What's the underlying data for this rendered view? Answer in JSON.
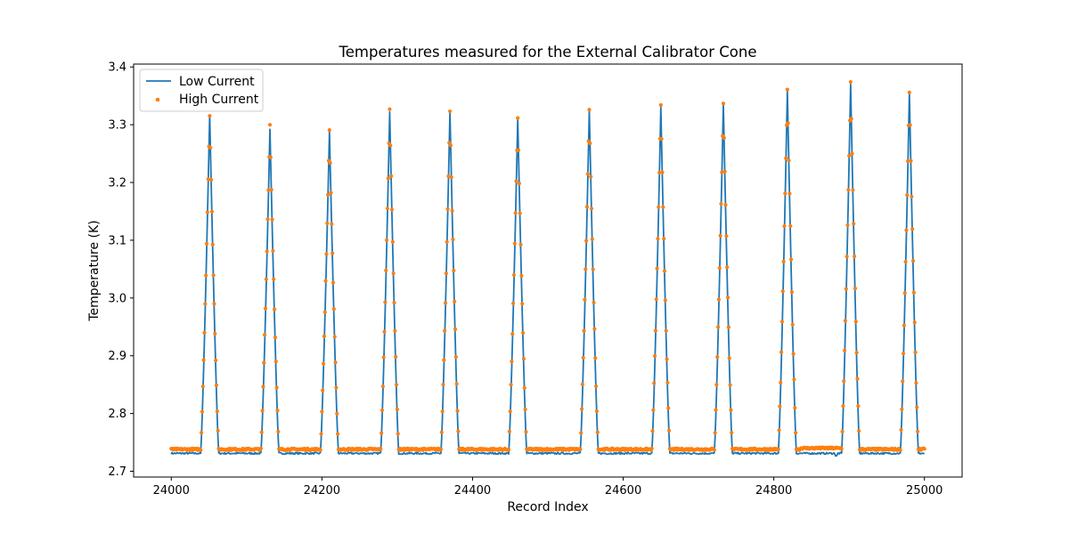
{
  "chart_data": {
    "type": "line",
    "title": "Temperatures measured for the External Calibrator Cone",
    "xlabel": "Record Index",
    "ylabel": "Temperature (K)",
    "xlim": [
      23950,
      25050
    ],
    "ylim": [
      2.69,
      3.405
    ],
    "xticks": [
      24000,
      24200,
      24400,
      24600,
      24800,
      25000
    ],
    "yticks": [
      2.7,
      2.8,
      2.9,
      3.0,
      3.1,
      3.2,
      3.3,
      3.4
    ],
    "x_range": [
      24000,
      25000
    ],
    "legend": {
      "placement": "upper left",
      "entries": [
        "Low Current",
        "High Current"
      ]
    },
    "colors": {
      "low": "#1f77b4",
      "high": "#ff7f0e"
    },
    "baseline": {
      "low": 2.731,
      "high": 2.738
    },
    "peaks": [
      {
        "center": 24051,
        "low_max": 3.317,
        "high_max": 3.318
      },
      {
        "center": 24131,
        "low_max": 3.292,
        "high_max": 3.3
      },
      {
        "center": 24210,
        "low_max": 3.288,
        "high_max": 3.29
      },
      {
        "center": 24290,
        "low_max": 3.322,
        "high_max": 3.325
      },
      {
        "center": 24370,
        "low_max": 3.323,
        "high_max": 3.325
      },
      {
        "center": 24460,
        "low_max": 3.31,
        "high_max": 3.313
      },
      {
        "center": 24555,
        "low_max": 3.325,
        "high_max": 3.328
      },
      {
        "center": 24650,
        "low_max": 3.33,
        "high_max": 3.332
      },
      {
        "center": 24733,
        "low_max": 3.335,
        "high_max": 3.338
      },
      {
        "center": 24818,
        "low_max": 3.358,
        "high_max": 3.362
      },
      {
        "center": 24902,
        "low_max": 3.37,
        "high_max": 3.372
      },
      {
        "center": 24980,
        "low_max": 3.355,
        "high_max": 3.358
      }
    ],
    "series": [
      {
        "name": "Low Current",
        "style": "line"
      },
      {
        "name": "High Current",
        "style": "scatter"
      }
    ]
  }
}
